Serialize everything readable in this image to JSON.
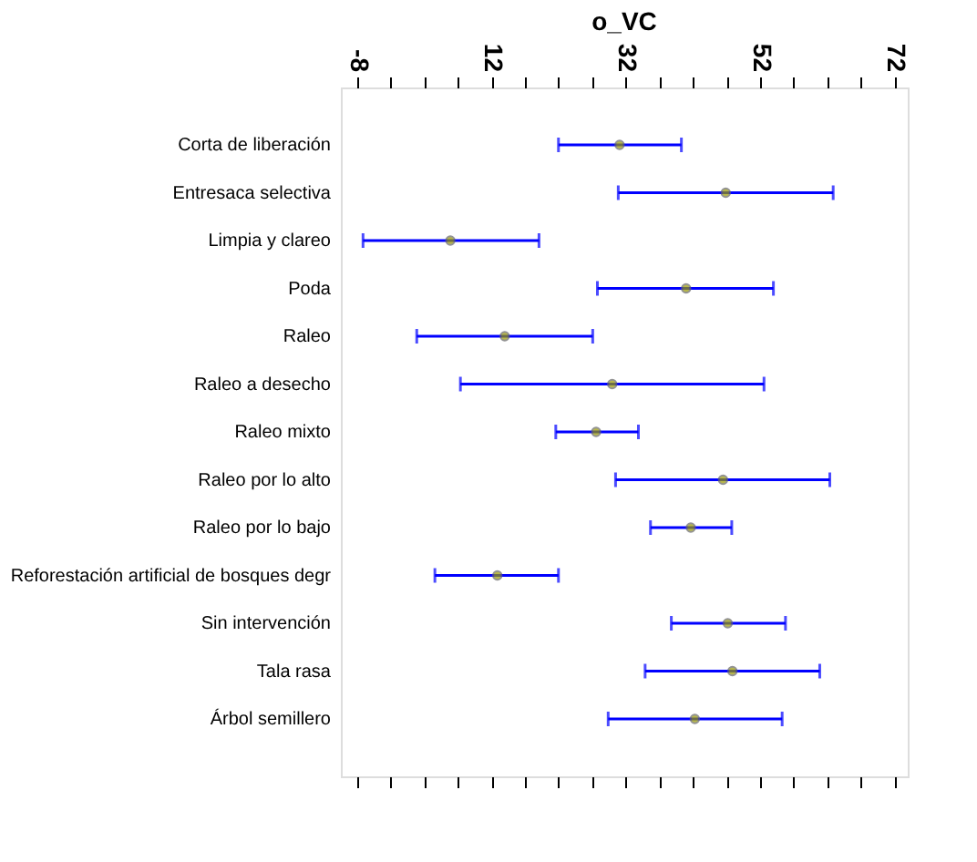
{
  "chart_data": {
    "type": "scatter",
    "orientation": "horizontal",
    "title": "o_VC",
    "categories": [
      "Corta de liberación",
      "Entresaca selectiva",
      "Limpia y clareo",
      "Poda",
      "Raleo",
      "Raleo a desecho",
      "Raleo mixto",
      "Raleo por lo alto",
      "Raleo por lo bajo",
      "Reforestación artificial de bosques degr",
      "Sin intervención",
      "Tala rasa",
      "Árbol semillero"
    ],
    "values": [
      31.1,
      46.9,
      5.9,
      41.0,
      14.0,
      30.0,
      27.6,
      46.5,
      41.7,
      12.9,
      47.2,
      47.9,
      42.3
    ],
    "errors": [
      [
        22.0,
        40.3
      ],
      [
        30.9,
        62.9
      ],
      [
        -7.1,
        19.1
      ],
      [
        27.8,
        54.0
      ],
      [
        0.9,
        27.1
      ],
      [
        7.4,
        52.6
      ],
      [
        21.6,
        33.9
      ],
      [
        30.5,
        62.4
      ],
      [
        35.7,
        47.8
      ],
      [
        3.6,
        22.0
      ],
      [
        38.8,
        55.8
      ],
      [
        34.9,
        60.9
      ],
      [
        29.4,
        55.3
      ]
    ],
    "color": "#999900",
    "xlim": [
      -10.4,
      74
    ],
    "xticks": [
      -8,
      {
        "value": -3,
        "label": null
      },
      {
        "value": 2,
        "label": null
      },
      {
        "value": 7,
        "label": null
      },
      12,
      {
        "value": 17,
        "label": null
      },
      {
        "value": 22,
        "label": null
      },
      {
        "value": 27,
        "label": null
      },
      32,
      {
        "value": 37,
        "label": null
      },
      {
        "value": 42,
        "label": null
      },
      {
        "value": 47,
        "label": null
      },
      52,
      {
        "value": 57,
        "label": null
      },
      {
        "value": 62,
        "label": null
      },
      {
        "value": 67,
        "label": null
      },
      72
    ],
    "grid": false,
    "marker": "circle"
  }
}
